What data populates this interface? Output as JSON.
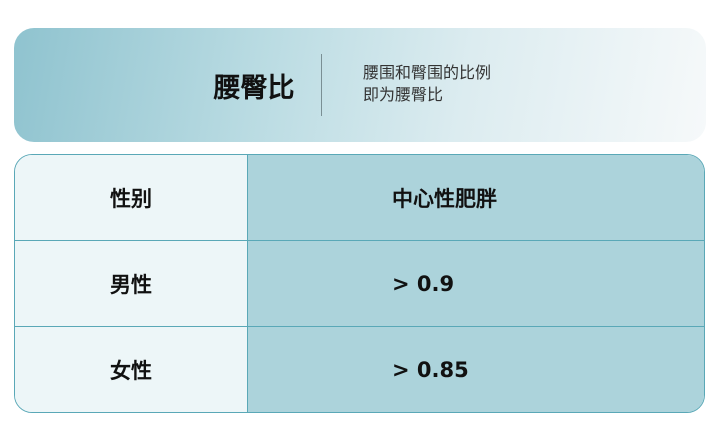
{
  "header": {
    "title": "腰臀比",
    "description_lines": [
      "腰围和臀围的比例",
      "即为腰臀比"
    ]
  },
  "table": {
    "columns": [
      "性别",
      "中心性肥胖"
    ],
    "rows": [
      [
        "男性",
        "> 0.9"
      ],
      [
        "女性",
        "> 0.85"
      ]
    ]
  },
  "colors": {
    "border": "#5aa8b7",
    "left_column": "#edf6f8",
    "right_column": "#acd3db",
    "header_gradient_start": "#8fc3cf"
  }
}
